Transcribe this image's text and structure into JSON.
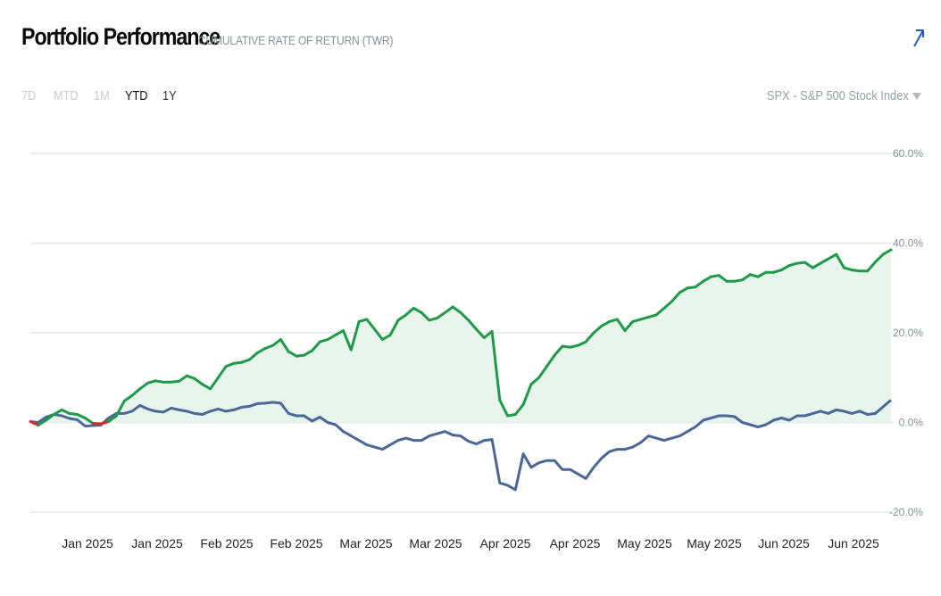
{
  "header": {
    "title": "Portfolio Performance",
    "subtitle": "CUMULATIVE RATE OF RETURN (TWR)"
  },
  "icons": {
    "expand": "arrow-up-right-icon",
    "dropdown": "caret-down-icon"
  },
  "periods": [
    {
      "label": "7D",
      "state": "disabled"
    },
    {
      "label": "MTD",
      "state": "disabled"
    },
    {
      "label": "1M",
      "state": "disabled"
    },
    {
      "label": "YTD",
      "state": "selected"
    },
    {
      "label": "1Y",
      "state": "enabled"
    }
  ],
  "benchmark": {
    "selected": "SPX - S&P 500 Stock Index"
  },
  "colors": {
    "portfolio": "#1f9a48",
    "portfolio_fill": "#e8f5ec",
    "negative": "#d62b2b",
    "benchmark": "#4a6797",
    "grid": "#e3e6ea",
    "accent": "#1f5fbf"
  },
  "chart_data": {
    "type": "line",
    "ylim": [
      -20,
      60
    ],
    "y_ticks": [
      "60.0%",
      "40.0%",
      "20.0%",
      "0.0%",
      "-20.0%"
    ],
    "y_tick_values": [
      60,
      40,
      20,
      0,
      -20
    ],
    "x_ticks": [
      "Jan 2025",
      "Jan 2025",
      "Feb 2025",
      "Feb 2025",
      "Mar 2025",
      "Mar 2025",
      "Apr 2025",
      "Apr 2025",
      "May 2025",
      "May 2025",
      "Jun 2025",
      "Jun 2025"
    ],
    "grid": true,
    "series": [
      {
        "key": "portfolio",
        "values": [
          0.2,
          -0.6,
          0.5,
          1.8,
          2.8,
          2.0,
          1.8,
          1.0,
          -0.2,
          -0.3,
          0.2,
          1.5,
          4.8,
          6.0,
          7.5,
          8.8,
          9.3,
          9.0,
          9.0,
          9.2,
          10.4,
          9.8,
          8.5,
          7.5,
          10.0,
          12.5,
          13.2,
          13.4,
          14.0,
          15.5,
          16.5,
          17.2,
          18.5,
          15.8,
          14.8,
          15.0,
          16.0,
          18.0,
          18.5,
          19.5,
          20.5,
          16.2,
          22.5,
          23.0,
          20.8,
          18.5,
          19.5,
          22.8,
          24.0,
          25.5,
          24.5,
          22.8,
          23.3,
          24.5,
          25.8,
          24.5,
          22.8,
          20.8,
          18.9,
          20.3,
          5.0,
          1.5,
          1.8,
          4.0,
          8.5,
          10.0,
          12.5,
          15.0,
          17.0,
          16.8,
          17.2,
          18.0,
          20.0,
          21.5,
          22.5,
          23.0,
          20.5,
          22.5,
          23.0,
          23.5,
          24.0,
          25.5,
          27.0,
          29.0,
          30.0,
          30.2,
          31.5,
          32.5,
          32.8,
          31.5,
          31.5,
          31.8,
          33.0,
          32.5,
          33.5,
          33.5,
          34.0,
          35.0,
          35.5,
          35.7,
          34.5,
          35.5,
          36.5,
          37.5,
          34.5,
          34.0,
          33.8,
          33.8,
          35.8,
          37.5,
          38.5
        ],
        "color": "#1f9a48"
      },
      {
        "key": "benchmark",
        "values": [
          0.2,
          0.0,
          1.2,
          1.8,
          1.5,
          0.9,
          0.6,
          -0.8,
          -0.7,
          -0.6,
          1.0,
          2.0,
          2.0,
          2.5,
          3.8,
          3.0,
          2.5,
          2.3,
          3.2,
          2.8,
          2.5,
          2.0,
          1.8,
          2.5,
          3.0,
          2.5,
          2.8,
          3.4,
          3.6,
          4.2,
          4.3,
          4.5,
          4.3,
          2.0,
          1.5,
          1.5,
          0.3,
          1.2,
          0.0,
          -0.5,
          -2.0,
          -3.0,
          -4.0,
          -5.0,
          -5.5,
          -6.0,
          -5.0,
          -4.0,
          -3.5,
          -4.0,
          -4.0,
          -3.0,
          -2.5,
          -2.0,
          -2.8,
          -3.0,
          -4.2,
          -4.8,
          -4.0,
          -3.8,
          -13.5,
          -14.0,
          -15.0,
          -7.0,
          -10.0,
          -9.0,
          -8.5,
          -8.5,
          -10.5,
          -10.5,
          -11.5,
          -12.5,
          -10.0,
          -8.0,
          -6.5,
          -6.0,
          -6.0,
          -5.5,
          -4.5,
          -3.0,
          -3.5,
          -4.0,
          -3.5,
          -3.0,
          -2.0,
          -1.0,
          0.5,
          1.0,
          1.5,
          1.5,
          1.3,
          0.0,
          -0.5,
          -1.0,
          -0.5,
          0.5,
          1.0,
          0.5,
          1.5,
          1.5,
          2.0,
          2.5,
          2.0,
          2.8,
          2.5,
          2.0,
          2.5,
          1.8,
          2.0,
          3.5,
          5.0
        ],
        "color": "#4a6797"
      }
    ]
  }
}
